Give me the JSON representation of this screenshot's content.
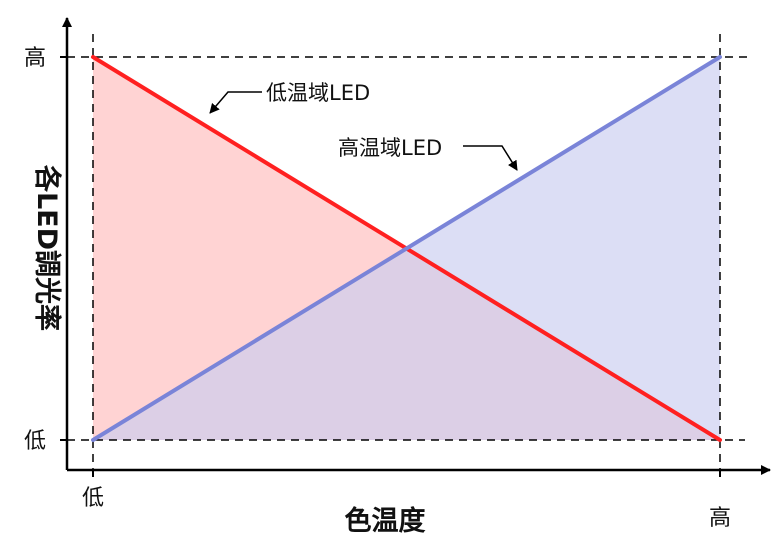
{
  "chart_data": {
    "type": "area",
    "x_ticks": [
      "低",
      "高"
    ],
    "y_ticks": [
      "高",
      "低"
    ],
    "xlabel": "色温度",
    "ylabel": "各LED調光率",
    "xlim": [
      0,
      1
    ],
    "ylim": [
      0,
      1
    ],
    "grid": false,
    "legend": "none",
    "series": [
      {
        "name": "低温域LED",
        "color": "#ff2020",
        "fill": "#ffbcbc",
        "x": [
          0,
          1
        ],
        "y": [
          1,
          0
        ]
      },
      {
        "name": "高温域LED",
        "color": "#7a84d8",
        "fill": "#c9cdf0",
        "x": [
          0,
          1
        ],
        "y": [
          0,
          1
        ]
      }
    ],
    "annotations": [
      {
        "text": "低温域LED",
        "series": 0
      },
      {
        "text": "高温域LED",
        "series": 1
      }
    ]
  }
}
